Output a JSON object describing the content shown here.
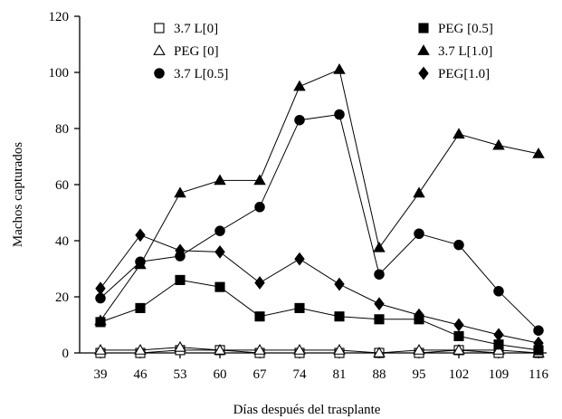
{
  "chart_data": {
    "type": "line",
    "xlabel": "Días después del trasplante",
    "ylabel": "Machos capturados",
    "x": [
      39,
      46,
      53,
      60,
      67,
      74,
      81,
      88,
      95,
      102,
      109,
      116
    ],
    "x_tick_labels": [
      "39",
      "46",
      "53",
      "60",
      "67",
      "74",
      "81",
      "88",
      "95",
      "102",
      "109",
      "116"
    ],
    "ylim": [
      0,
      120
    ],
    "y_ticks": [
      0,
      20,
      40,
      60,
      80,
      100,
      120
    ],
    "y_tick_labels": [
      "0",
      "20",
      "40",
      "60",
      "80",
      "100",
      "120"
    ],
    "grid": false,
    "legend_placement": "top",
    "series": [
      {
        "name": "3.7 L[0]",
        "marker": "square-open",
        "values": [
          0,
          0,
          1,
          1,
          0,
          0,
          0,
          0,
          0,
          1,
          0,
          0
        ]
      },
      {
        "name": "PEG [0]",
        "marker": "triangle-open",
        "values": [
          1,
          1,
          2,
          1,
          1,
          1,
          1,
          0,
          1,
          1,
          1,
          0
        ]
      },
      {
        "name": "3.7 L[0.5]",
        "marker": "circle-filled",
        "values": [
          19.5,
          32.5,
          34.5,
          43.5,
          52,
          83,
          85,
          28,
          42.5,
          38.5,
          22,
          8
        ]
      },
      {
        "name": "PEG [0.5]",
        "marker": "square-filled",
        "values": [
          11,
          16,
          26,
          23.5,
          13,
          16,
          13,
          12,
          12,
          6,
          3,
          1
        ]
      },
      {
        "name": "3.7 L[1.0]",
        "marker": "triangle-filled",
        "values": [
          11.5,
          31.5,
          57,
          61.5,
          61.5,
          95,
          101,
          37.5,
          57,
          78,
          74,
          71
        ]
      },
      {
        "name": "PEG[1.0]",
        "marker": "diamond-filled",
        "values": [
          23,
          42,
          36.5,
          36,
          25,
          33.5,
          24.5,
          17.5,
          13.5,
          10,
          6.5,
          3.5
        ]
      }
    ]
  }
}
